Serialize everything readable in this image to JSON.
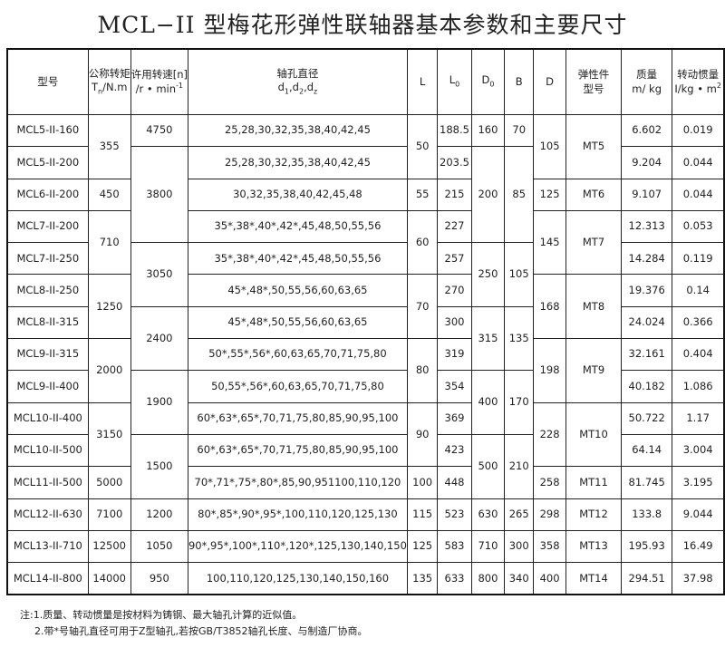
{
  "title": "MCL−II 型梅花形弹性联轴器基本参数和主要尺寸",
  "headers": [
    {
      "l1": "型号",
      "l2": ""
    },
    {
      "l1": "公称转矩",
      "l2a": "T",
      "l2sub": "n",
      "l2b": "/N.m"
    },
    {
      "l1": "许用转速[n]",
      "l2a": "/r • min",
      "l2sup": "-1"
    },
    {
      "l1": "轴孔直径",
      "l2a": "d",
      "l2sub": "1",
      "l2b": ",d",
      "l2sub2": "2",
      "l2c": ",d",
      "l2sub3": "z"
    },
    {
      "l1": "L"
    },
    {
      "l1a": "L",
      "l1sub": "0"
    },
    {
      "l1a": "D",
      "l1sub": "0"
    },
    {
      "l1": "B"
    },
    {
      "l1": "D"
    },
    {
      "l1": "弹性件",
      "l2": "型号"
    },
    {
      "l1": "质量",
      "l2": "m/ kg"
    },
    {
      "l1": "转动惯量",
      "l2a": "I/kg • m",
      "l2sup": "2"
    }
  ],
  "columns": {
    "model": [
      [
        "MCL5-II-160",
        1
      ],
      [
        "MCL5-II-200",
        1
      ],
      [
        "MCL6-II-200",
        1
      ],
      [
        "MCL7-II-200",
        1
      ],
      [
        "MCL7-II-250",
        1
      ],
      [
        "MCL8-II-250",
        1
      ],
      [
        "MCL8-II-315",
        1
      ],
      [
        "MCL9-II-315",
        1
      ],
      [
        "MCL9-II-400",
        1
      ],
      [
        "MCL10-II-400",
        1
      ],
      [
        "MCL10-II-500",
        1
      ],
      [
        "MCL11-II-500",
        1
      ],
      [
        "MCL12-II-630",
        1
      ],
      [
        "MCL13-II-710",
        1
      ],
      [
        "MCL14-II-800",
        1
      ]
    ],
    "torque": [
      [
        "355",
        2
      ],
      [
        "450",
        1
      ],
      [
        "710",
        2
      ],
      [
        "1250",
        2
      ],
      [
        "2000",
        2
      ],
      [
        "3150",
        2
      ],
      [
        "5000",
        1
      ],
      [
        "7100",
        1
      ],
      [
        "12500",
        1
      ],
      [
        "14000",
        1
      ]
    ],
    "speed": [
      [
        "4750",
        1
      ],
      [
        "3800",
        3
      ],
      [
        "3050",
        2
      ],
      [
        "2400",
        2
      ],
      [
        "1900",
        2
      ],
      [
        "1500",
        2
      ],
      [
        "1200",
        1
      ],
      [
        "1050",
        1
      ],
      [
        "950",
        1
      ]
    ],
    "bore": [
      [
        "25,28,30,32,35,38,40,42,45",
        1
      ],
      [
        "25,28,30,32,35,38,40,42,45",
        1
      ],
      [
        "30,32,35,38,40,42,45,48",
        1
      ],
      [
        "35*,38*,40*,42*,45,48,50,55,56",
        1
      ],
      [
        "35*,38*,40*,42*,45,48,50,55,56",
        1
      ],
      [
        "45*,48*,50,55,56,60,63,65",
        1
      ],
      [
        "45*,48*,50,55,56,60,63,65",
        1
      ],
      [
        "50*,55*,56*,60,63,65,70,71,75,80",
        1
      ],
      [
        "50,55*,56*,60,63,65,70,71,75,80",
        1
      ],
      [
        "60*,63*,65*,70,71,75,80,85,90,95,100",
        1
      ],
      [
        "60*,63*,65*,70,71,75,80,85,90,95,100",
        1
      ],
      [
        "70*,71*,75*,80*,85,90,951100,110,120",
        1
      ],
      [
        "80*,85*,90*,95*,100,110,120,125,130",
        1
      ],
      [
        "90*,95*,100*,110*,120*,125,130,140,150",
        1
      ],
      [
        "100,110,120,125,130,140,150,160",
        1
      ]
    ],
    "L": [
      [
        "50",
        2
      ],
      [
        "55",
        1
      ],
      [
        "60",
        2
      ],
      [
        "70",
        2
      ],
      [
        "80",
        2
      ],
      [
        "90",
        2
      ],
      [
        "100",
        1
      ],
      [
        "115",
        1
      ],
      [
        "125",
        1
      ],
      [
        "135",
        1
      ]
    ],
    "L0": [
      [
        "188.5",
        1
      ],
      [
        "203.5",
        1
      ],
      [
        "215",
        1
      ],
      [
        "227",
        1
      ],
      [
        "257",
        1
      ],
      [
        "270",
        1
      ],
      [
        "300",
        1
      ],
      [
        "319",
        1
      ],
      [
        "354",
        1
      ],
      [
        "369",
        1
      ],
      [
        "423",
        1
      ],
      [
        "448",
        1
      ],
      [
        "523",
        1
      ],
      [
        "583",
        1
      ],
      [
        "633",
        1
      ]
    ],
    "D0": [
      [
        "160",
        1
      ],
      [
        "200",
        3
      ],
      [
        "250",
        2
      ],
      [
        "315",
        2
      ],
      [
        "400",
        2
      ],
      [
        "500",
        2
      ],
      [
        "630",
        1
      ],
      [
        "710",
        1
      ],
      [
        "800",
        1
      ]
    ],
    "B": [
      [
        "70",
        1
      ],
      [
        "85",
        3
      ],
      [
        "105",
        2
      ],
      [
        "135",
        2
      ],
      [
        "170",
        2
      ],
      [
        "210",
        2
      ],
      [
        "265",
        1
      ],
      [
        "300",
        1
      ],
      [
        "340",
        1
      ]
    ],
    "D": [
      [
        "105",
        2
      ],
      [
        "125",
        1
      ],
      [
        "145",
        2
      ],
      [
        "168",
        2
      ],
      [
        "198",
        2
      ],
      [
        "228",
        2
      ],
      [
        "258",
        1
      ],
      [
        "298",
        1
      ],
      [
        "358",
        1
      ],
      [
        "400",
        1
      ]
    ],
    "element": [
      [
        "MT5",
        2
      ],
      [
        "MT6",
        1
      ],
      [
        "MT7",
        2
      ],
      [
        "MT8",
        2
      ],
      [
        "MT9",
        2
      ],
      [
        "MT10",
        2
      ],
      [
        "MT11",
        1
      ],
      [
        "MT12",
        1
      ],
      [
        "MT13",
        1
      ],
      [
        "MT14",
        1
      ]
    ],
    "mass": [
      [
        "6.602",
        1
      ],
      [
        "9.204",
        1
      ],
      [
        "9.107",
        1
      ],
      [
        "12.313",
        1
      ],
      [
        "14.284",
        1
      ],
      [
        "19.376",
        1
      ],
      [
        "24.024",
        1
      ],
      [
        "32.161",
        1
      ],
      [
        "40.182",
        1
      ],
      [
        "50.722",
        1
      ],
      [
        "64.14",
        1
      ],
      [
        "81.745",
        1
      ],
      [
        "133.8",
        1
      ],
      [
        "195.93",
        1
      ],
      [
        "294.51",
        1
      ]
    ],
    "inertia": [
      [
        "0.019",
        1
      ],
      [
        "0.044",
        1
      ],
      [
        "0.044",
        1
      ],
      [
        "0.053",
        1
      ],
      [
        "0.119",
        1
      ],
      [
        "0.14",
        1
      ],
      [
        "0.366",
        1
      ],
      [
        "0.404",
        1
      ],
      [
        "1.086",
        1
      ],
      [
        "1.17",
        1
      ],
      [
        "3.004",
        1
      ],
      [
        "3.195",
        1
      ],
      [
        "9.044",
        1
      ],
      [
        "16.49",
        1
      ],
      [
        "37.98",
        1
      ]
    ]
  },
  "notes": [
    "注:1.质量、转动惯量是按材料为铸钢、最大轴孔计算的近似值。",
    "2.带*号轴孔直径可用于Z型轴孔,若按GB/T3852轴孔长度、与制造厂协商。"
  ]
}
